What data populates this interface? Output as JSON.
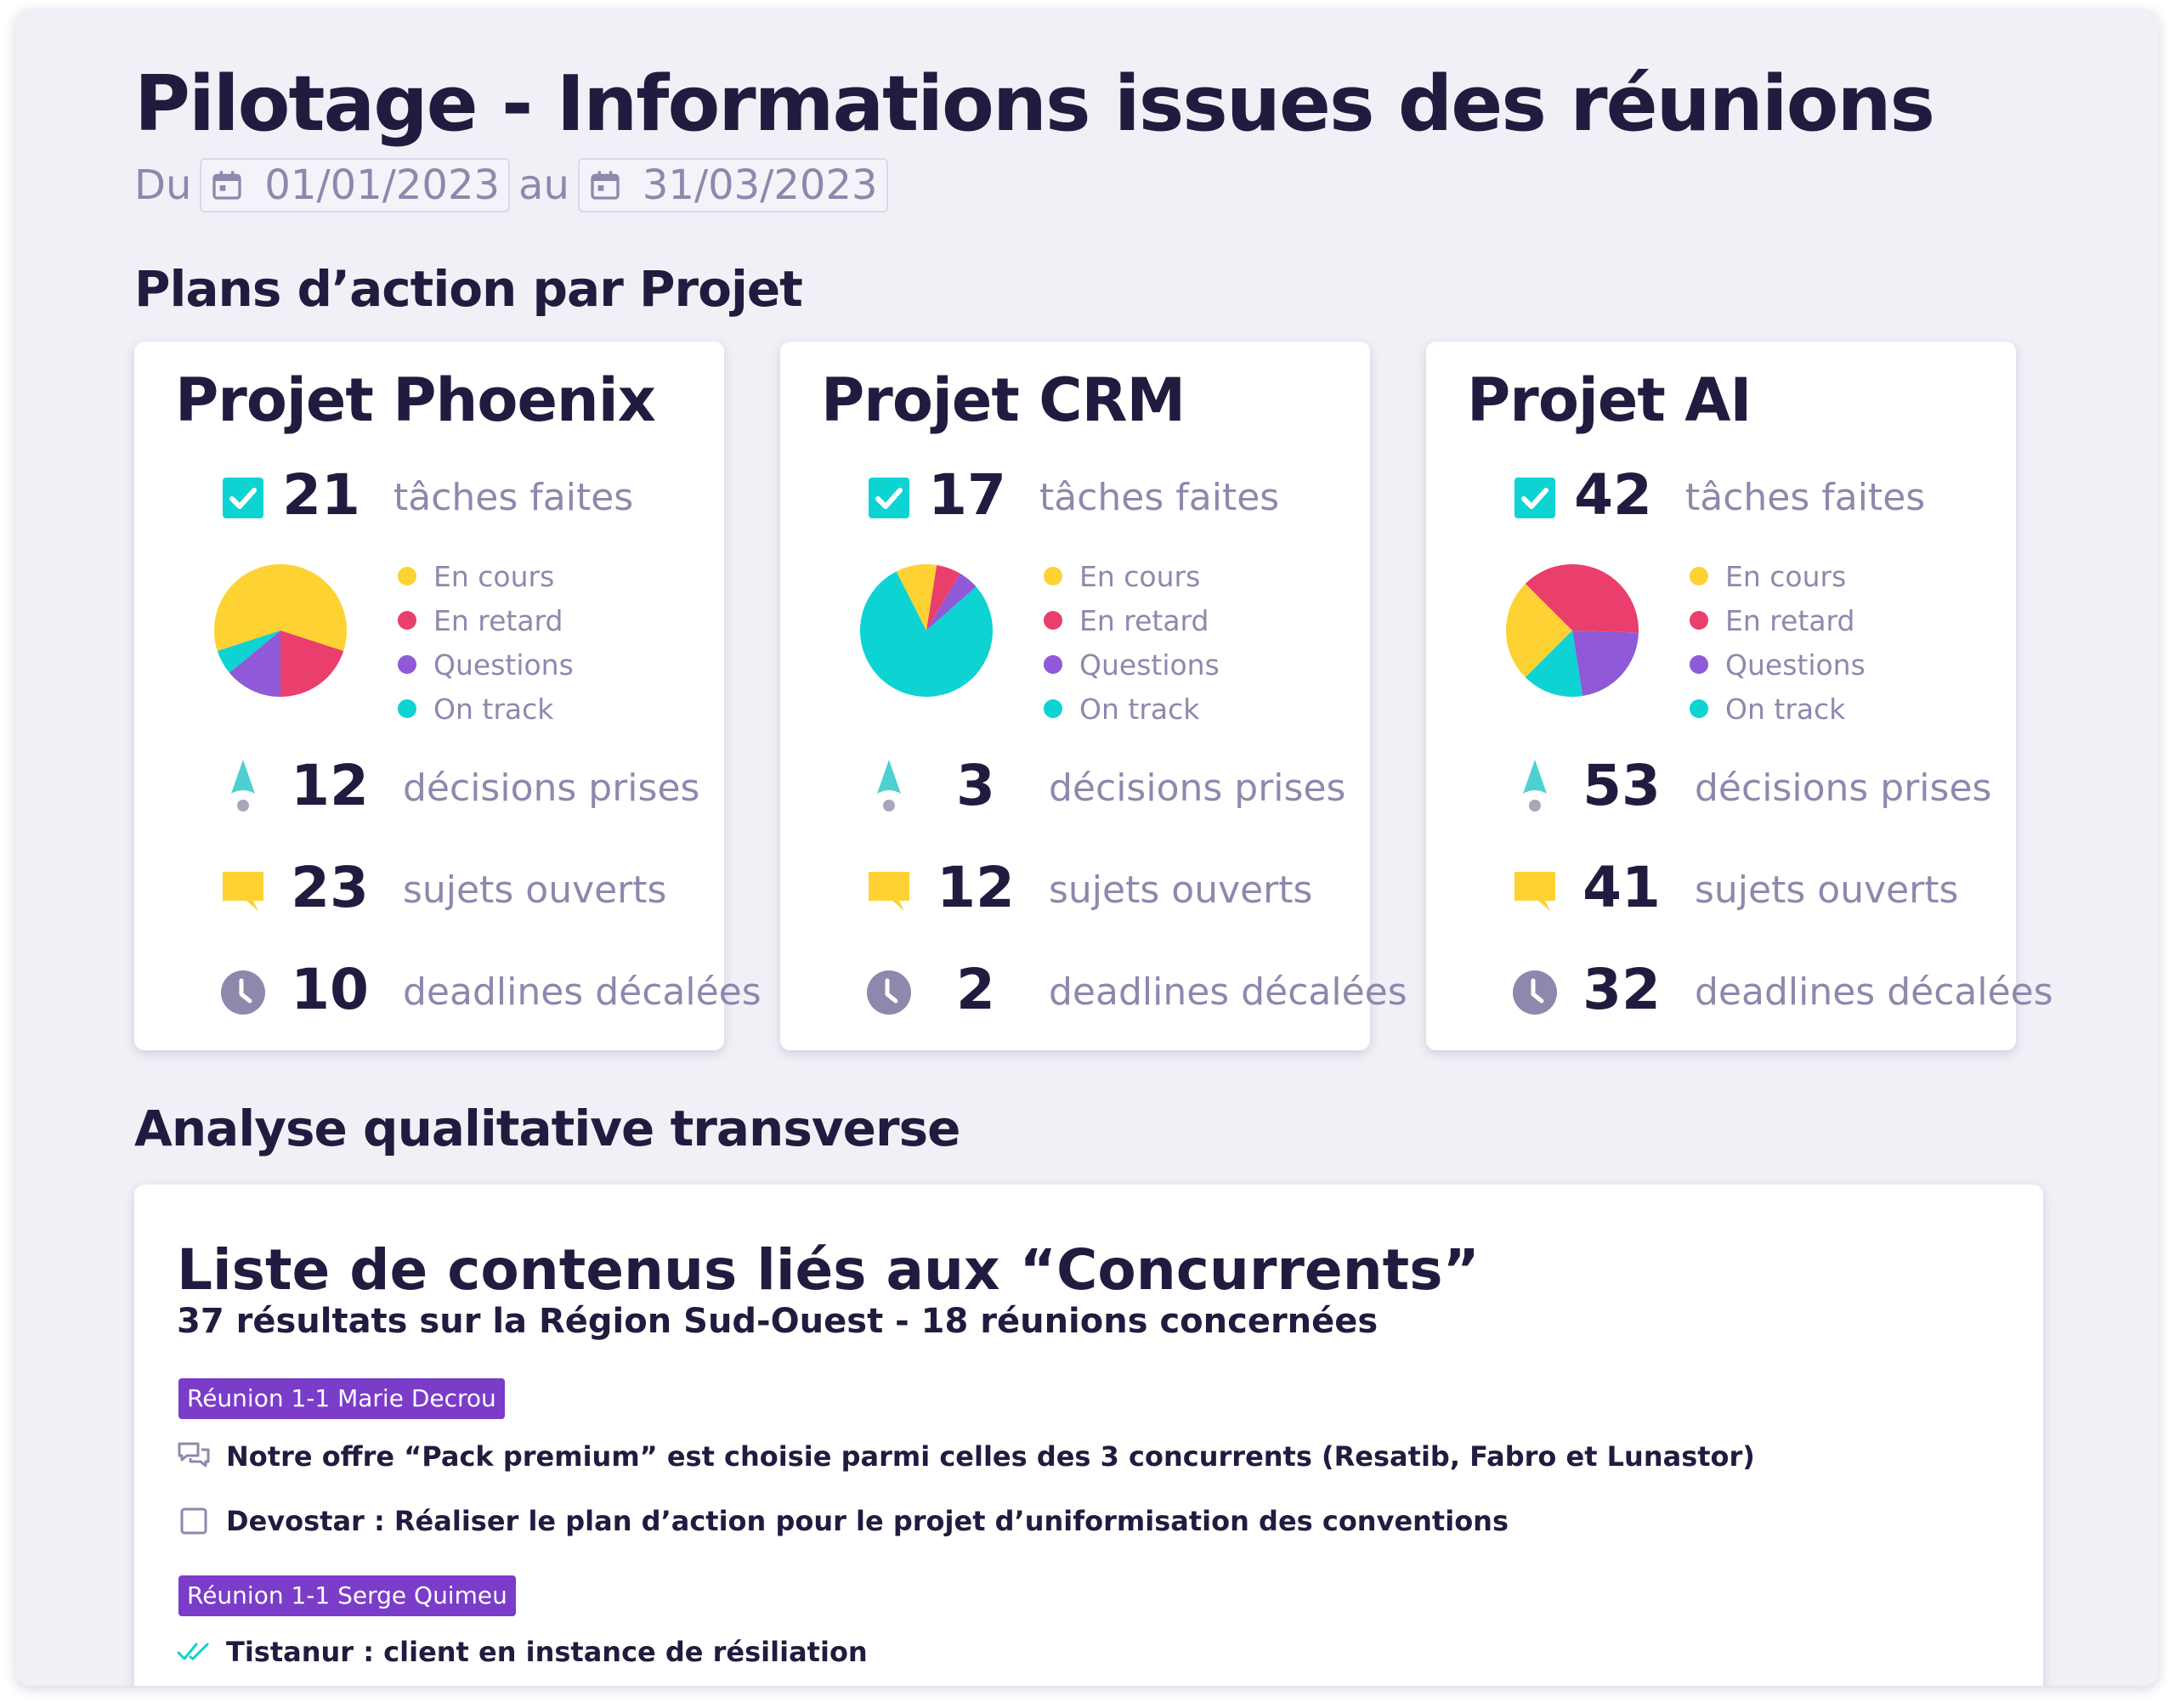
{
  "header": {
    "title": "Pilotage - Informations issues des réunions",
    "date_prefix": "Du",
    "date_start": "01/01/2023",
    "date_sep": "au",
    "date_end": "31/03/2023"
  },
  "sections": {
    "projects_title": "Plans d’action par Projet",
    "analysis_title": "Analyse qualitative transverse"
  },
  "legend": {
    "in_progress": "En cours",
    "late": "En retard",
    "questions": "Questions",
    "on_track": "On track"
  },
  "labels": {
    "tasks": "tâches faites",
    "decisions": "décisions prises",
    "topics": "sujets ouverts",
    "deadlines": "deadlines décalées"
  },
  "colors": {
    "in_progress": "#fdd232",
    "late": "#ea3e6c",
    "questions": "#8f59d8",
    "on_track": "#0dd3d2",
    "accent": "#7a3cc9",
    "text": "#211c3f",
    "muted": "#8e88ad"
  },
  "projects": [
    {
      "name": "Projet Phoenix",
      "tasks_done": "21",
      "decisions": "12",
      "open_topics": "23",
      "shifted_deadlines": "10",
      "status_split": {
        "in_progress": 60,
        "late": 20,
        "questions": 14,
        "on_track": 6
      }
    },
    {
      "name": "Projet CRM",
      "tasks_done": "17",
      "decisions": "3",
      "open_topics": "12",
      "shifted_deadlines": "2",
      "status_split": {
        "in_progress": 10,
        "late": 6,
        "questions": 5,
        "on_track": 79
      }
    },
    {
      "name": "Projet AI",
      "tasks_done": "42",
      "decisions": "53",
      "open_topics": "41",
      "shifted_deadlines": "32",
      "status_split": {
        "in_progress": 25,
        "late": 38,
        "questions": 22,
        "on_track": 15
      }
    }
  ],
  "analysis": {
    "title": "Liste de contenus liés aux “Concurrents”",
    "subtitle": "37 résultats sur la Région Sud-Ouest - 18 réunions concernées",
    "meetings": [
      {
        "tag": "Réunion 1-1 Marie  Decrou",
        "items": [
          {
            "icon": "chat-bubbles-icon",
            "text": "Notre offre “Pack premium” est choisie parmi celles des 3 concurrents (Resatib, Fabro et Lunastor)"
          },
          {
            "icon": "checkbox-icon",
            "text": "Devostar : Réaliser le plan d’action pour le projet d’uniformisation des conventions"
          }
        ]
      },
      {
        "tag": "Réunion 1-1 Serge Quimeu",
        "items": [
          {
            "icon": "double-check-icon",
            "text": "Tistanur : client en instance de résiliation"
          }
        ]
      }
    ]
  }
}
